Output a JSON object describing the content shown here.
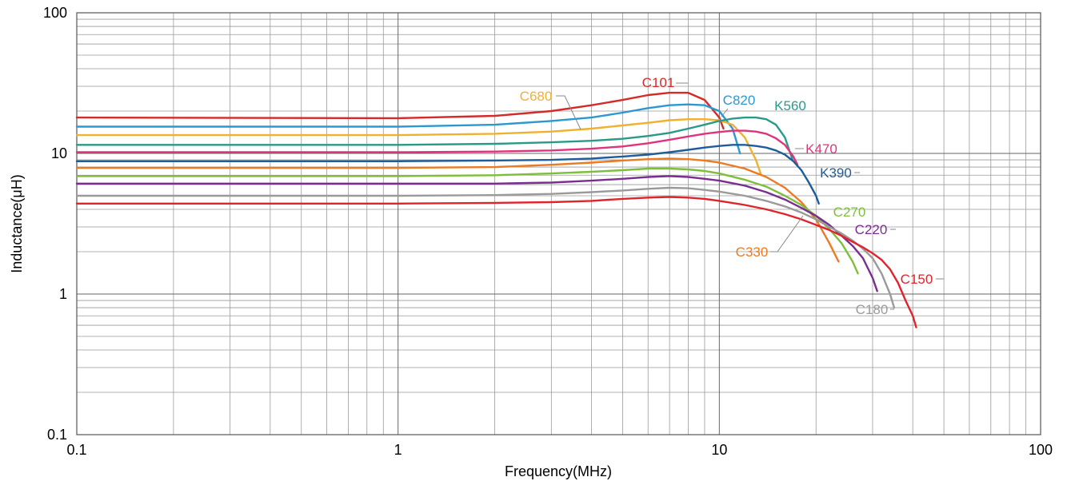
{
  "chart_data": {
    "type": "line",
    "title": "",
    "xlabel": "Frequency(MHz)",
    "ylabel": "Inductance(μH)",
    "x_scale": "log",
    "y_scale": "log",
    "xlim": [
      0.1,
      100
    ],
    "ylim": [
      0.1,
      100
    ],
    "x_ticks": [
      "0.1",
      "1",
      "10",
      "100"
    ],
    "y_ticks": [
      "0.1",
      "1",
      "10",
      "100"
    ],
    "grid": true,
    "legend": "inline labels",
    "series": [
      {
        "name": "C101",
        "color": "#d42a2a",
        "x": [
          0.1,
          1,
          2,
          3,
          4,
          5,
          6,
          7,
          8,
          9,
          10,
          10.3
        ],
        "y": [
          18,
          17.8,
          18.5,
          20,
          22,
          24,
          26,
          27,
          27,
          24,
          18,
          15
        ]
      },
      {
        "name": "C820",
        "color": "#2b98d0",
        "x": [
          0.1,
          1,
          2,
          3,
          4,
          5,
          6,
          7,
          8,
          9,
          10,
          11,
          11.6
        ],
        "y": [
          15.5,
          15.5,
          16,
          17,
          18,
          19.5,
          21,
          22,
          22.3,
          22,
          20,
          15,
          10
        ]
      },
      {
        "name": "C680",
        "color": "#f0b030",
        "x": [
          0.1,
          1,
          2,
          3,
          4,
          5,
          6,
          7,
          8,
          9,
          10,
          11,
          12,
          13,
          13.5
        ],
        "y": [
          13.5,
          13.5,
          13.8,
          14.3,
          15,
          15.8,
          16.5,
          17.2,
          17.5,
          17.5,
          17.2,
          16,
          13,
          9,
          7
        ]
      },
      {
        "name": "K560",
        "color": "#2a9a88",
        "x": [
          0.1,
          1,
          2,
          3,
          4,
          5,
          6,
          7,
          8,
          9,
          10,
          11,
          12,
          13,
          14,
          15,
          16,
          16.9
        ],
        "y": [
          11.5,
          11.5,
          11.7,
          12,
          12.3,
          12.7,
          13.3,
          14,
          15,
          16,
          17,
          17.7,
          18,
          18,
          17.5,
          16,
          13,
          9
        ]
      },
      {
        "name": "K470",
        "color": "#e0337e",
        "x": [
          0.1,
          1,
          2,
          3,
          4,
          5,
          6,
          7,
          8,
          9,
          10,
          11,
          12,
          13,
          14,
          15,
          16,
          17,
          17.5
        ],
        "y": [
          10.2,
          10.2,
          10.3,
          10.5,
          10.8,
          11.2,
          11.8,
          12.5,
          13.2,
          13.8,
          14.2,
          14.5,
          14.5,
          14.3,
          13.8,
          12.8,
          11.5,
          9.5,
          8.3
        ]
      },
      {
        "name": "K390",
        "color": "#1f5c9a",
        "x": [
          0.1,
          1,
          2,
          3,
          4,
          5,
          6,
          7,
          8,
          9,
          10,
          11,
          12,
          13,
          14,
          15,
          16,
          17,
          18,
          19,
          20,
          20.4
        ],
        "y": [
          8.8,
          8.8,
          8.9,
          9,
          9.2,
          9.5,
          9.8,
          10.2,
          10.6,
          11,
          11.3,
          11.5,
          11.5,
          11.3,
          11,
          10.5,
          9.8,
          8.8,
          7.6,
          6.2,
          5,
          4.4
        ]
      },
      {
        "name": "C330",
        "color": "#ec7a22",
        "x": [
          0.1,
          1,
          2,
          3,
          4,
          5,
          6,
          7,
          8,
          9,
          10,
          12,
          14,
          16,
          18,
          20,
          22,
          23.5
        ],
        "y": [
          7.9,
          7.9,
          8,
          8.3,
          8.6,
          8.9,
          9.1,
          9.2,
          9.1,
          8.9,
          8.6,
          7.8,
          6.8,
          5.7,
          4.5,
          3.4,
          2.3,
          1.7
        ]
      },
      {
        "name": "C270",
        "color": "#7ebf3a",
        "x": [
          0.1,
          1,
          2,
          3,
          4,
          5,
          6,
          7,
          8,
          9,
          10,
          12,
          14,
          16,
          18,
          20,
          22,
          24,
          26,
          27
        ],
        "y": [
          6.9,
          6.9,
          7,
          7.2,
          7.4,
          7.6,
          7.8,
          7.8,
          7.7,
          7.5,
          7.2,
          6.5,
          5.8,
          5,
          4.3,
          3.6,
          2.9,
          2.3,
          1.7,
          1.4
        ]
      },
      {
        "name": "C220",
        "color": "#7a2f8f",
        "x": [
          0.1,
          1,
          2,
          3,
          4,
          5,
          6,
          7,
          8,
          9,
          10,
          12,
          14,
          16,
          18,
          20,
          22,
          24,
          26,
          28,
          30,
          31
        ],
        "y": [
          6.1,
          6.1,
          6.1,
          6.2,
          6.4,
          6.6,
          6.8,
          6.9,
          6.8,
          6.6,
          6.4,
          5.9,
          5.3,
          4.7,
          4.1,
          3.6,
          3.1,
          2.6,
          2.2,
          1.8,
          1.3,
          1.05
        ]
      },
      {
        "name": "C180",
        "color": "#9a9a9a",
        "x": [
          0.1,
          1,
          2,
          3,
          4,
          5,
          6,
          7,
          8,
          9,
          10,
          12,
          14,
          16,
          18,
          20,
          22,
          24,
          26,
          28,
          30,
          32,
          34,
          35
        ],
        "y": [
          5,
          5,
          5.05,
          5.15,
          5.3,
          5.45,
          5.6,
          5.7,
          5.65,
          5.5,
          5.35,
          5,
          4.6,
          4.2,
          3.8,
          3.4,
          3,
          2.7,
          2.4,
          2.1,
          1.8,
          1.4,
          1,
          0.8
        ]
      },
      {
        "name": "C150",
        "color": "#e0242b",
        "x": [
          0.1,
          1,
          2,
          3,
          4,
          5,
          6,
          7,
          8,
          9,
          10,
          12,
          14,
          16,
          18,
          20,
          22,
          24,
          26,
          28,
          30,
          32,
          34,
          36,
          38,
          40,
          41
        ],
        "y": [
          4.4,
          4.4,
          4.45,
          4.5,
          4.6,
          4.75,
          4.85,
          4.9,
          4.85,
          4.75,
          4.6,
          4.3,
          4,
          3.7,
          3.4,
          3.1,
          2.85,
          2.6,
          2.35,
          2.15,
          1.95,
          1.75,
          1.5,
          1.2,
          0.9,
          0.7,
          0.58
        ]
      }
    ]
  }
}
